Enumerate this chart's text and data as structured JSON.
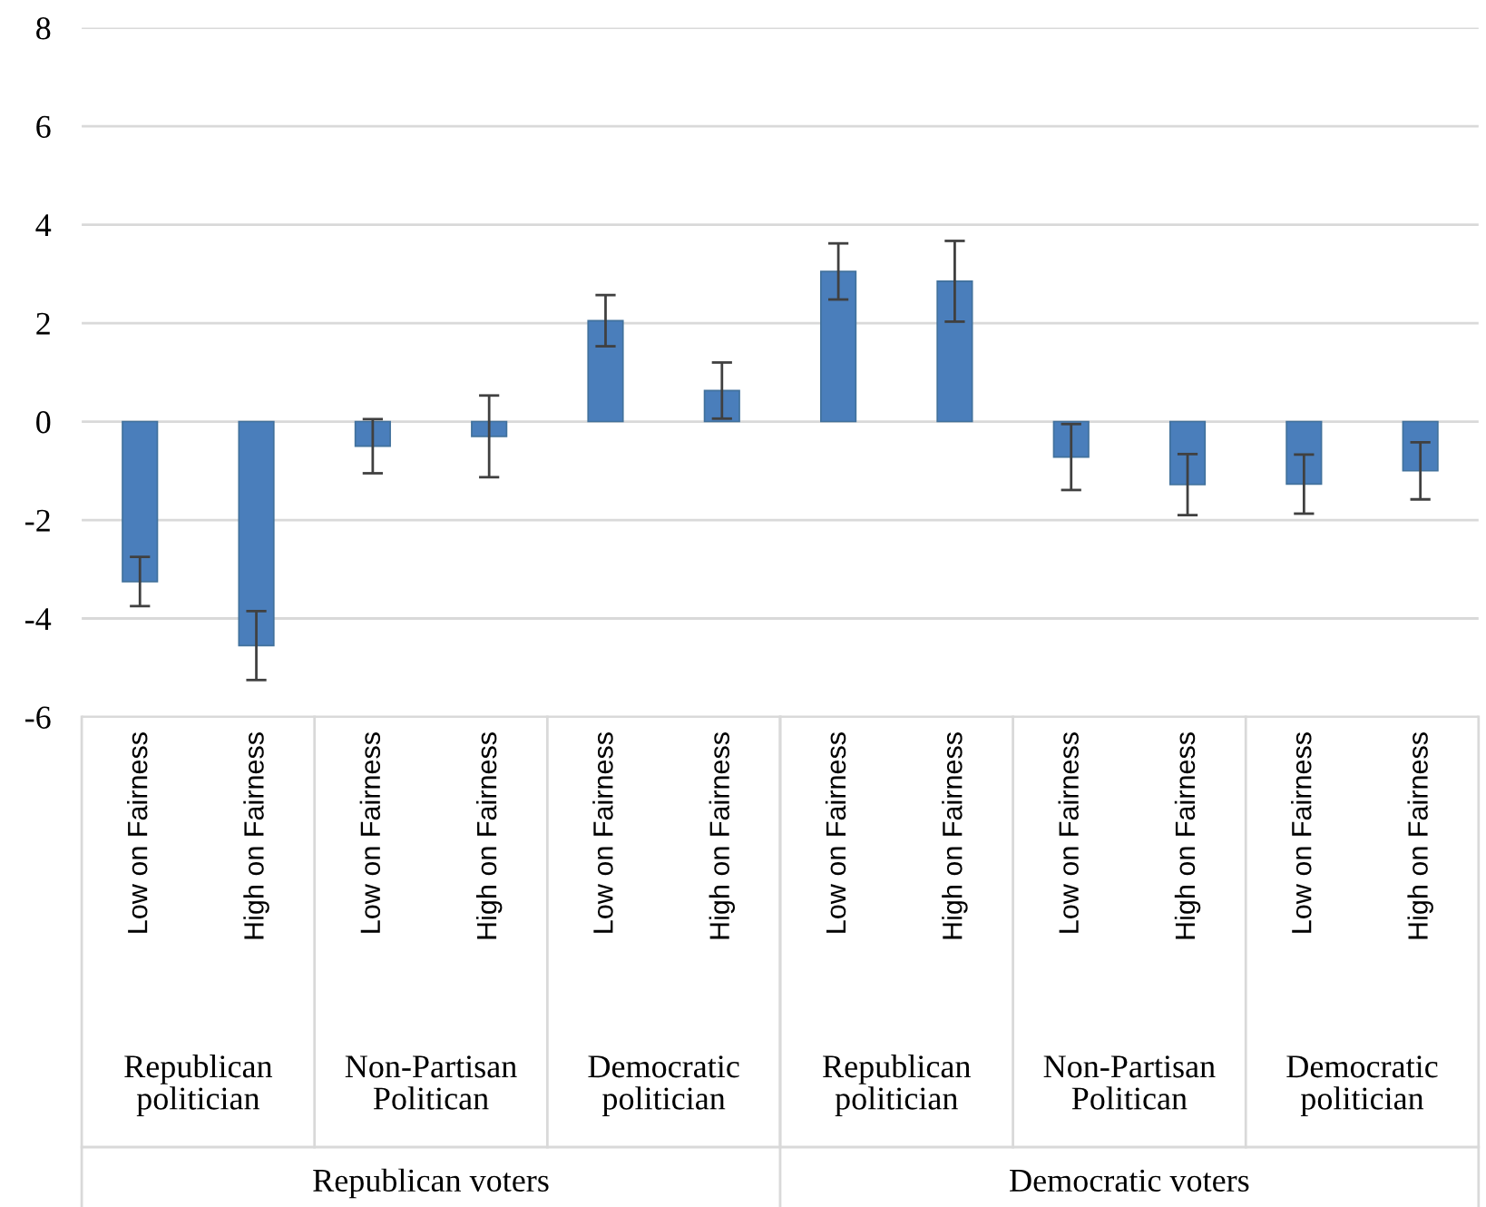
{
  "chart_data": {
    "type": "bar",
    "categories": [
      "Low on Fairness",
      "High on Fairness",
      "Low on Fairness",
      "High on Fairness",
      "Low on Fairness",
      "High on Fairness",
      "Low on Fairness",
      "High on Fairness",
      "Low on Fairness",
      "High on Fairness",
      "Low on Fairness",
      "High on Fairness"
    ],
    "values": [
      -3.25,
      -4.55,
      -0.5,
      -0.3,
      2.05,
      0.63,
      3.05,
      2.85,
      -0.72,
      -1.28,
      -1.27,
      -1.0
    ],
    "errors": [
      0.5,
      0.7,
      0.55,
      0.83,
      0.52,
      0.57,
      0.57,
      0.82,
      0.67,
      0.62,
      0.6,
      0.58
    ],
    "color": "#4a7ebb",
    "ylim": [
      -6,
      8
    ],
    "yticks": [
      -6,
      -4,
      -2,
      0,
      2,
      4,
      6,
      8
    ],
    "grid": "y",
    "annotations": [
      "Republican\npolitician",
      "Non-Partisan\nPolitican",
      "Democratic\npolitician",
      "Republican\npolitician",
      "Non-Partisan\nPolitican",
      "Democratic\npolitician",
      "Republican voters",
      "Democratic voters"
    ]
  }
}
